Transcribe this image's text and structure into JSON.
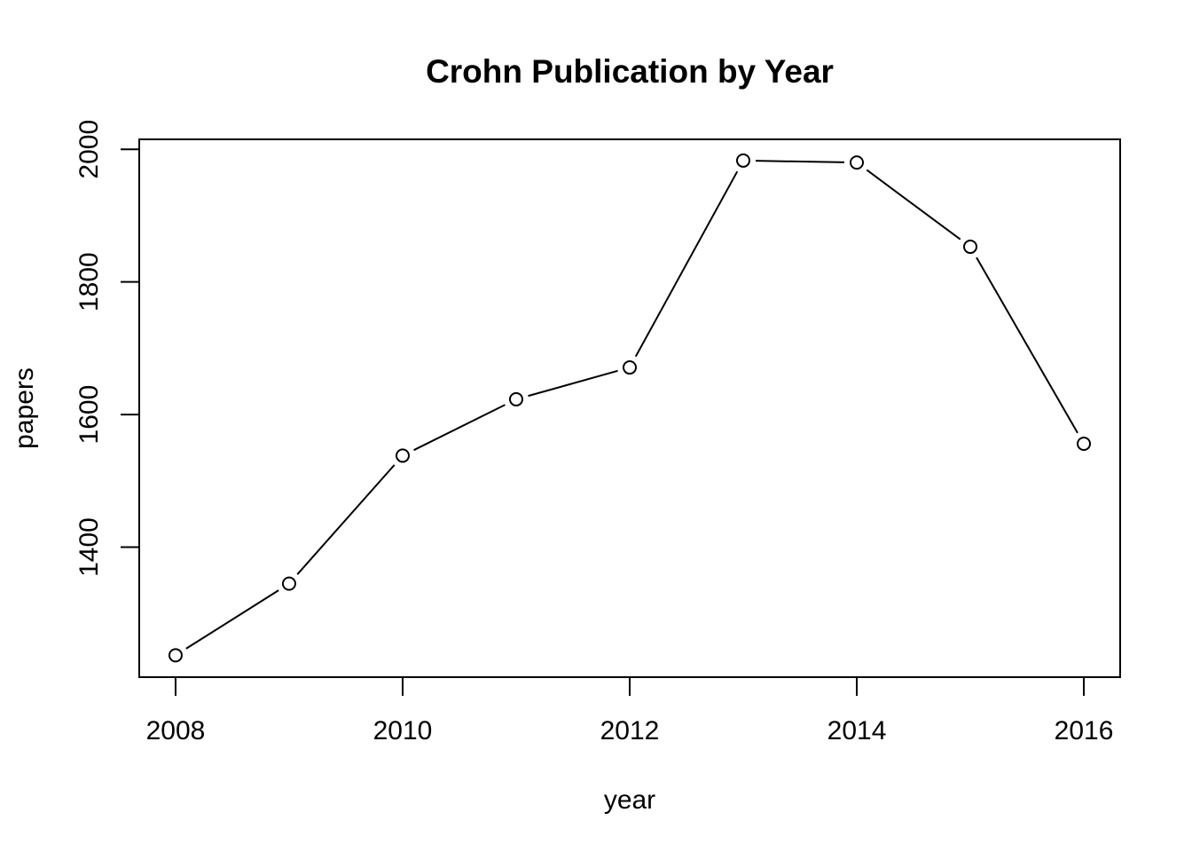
{
  "chart_data": {
    "type": "line",
    "title": "Crohn Publication by Year",
    "xlabel": "year",
    "ylabel": "papers",
    "x": [
      2008,
      2009,
      2010,
      2011,
      2012,
      2013,
      2014,
      2015,
      2016
    ],
    "series": [
      {
        "values": [
          1237,
          1345,
          1538,
          1623,
          1671,
          1983,
          1980,
          1853,
          1556
        ]
      }
    ],
    "xlim": [
      2007.68,
      2016.32
    ],
    "ylim": [
      1204,
      2015
    ],
    "xticks": [
      2008,
      2010,
      2012,
      2014,
      2016
    ],
    "yticks": [
      1400,
      1600,
      1800,
      2000
    ],
    "grid": false,
    "legend": "none",
    "marker": "open-circle",
    "line_color": "#000000"
  }
}
